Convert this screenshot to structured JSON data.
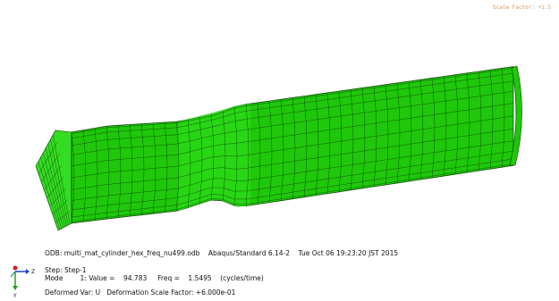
{
  "scale_factor": "Scale Factor: +1.5",
  "info": {
    "odb": "ODB: multi_mat_cylinder_hex_freq_nu499.odb    Abaqus/Standard 6.14-2    Tue Oct 06 19:23:20 JST 2015",
    "step": "Step: Step-1",
    "mode": "Mode        1: Value =    94.783     Freq =    1.5495    (cycles/time)",
    "deformed": "Deformed Var: U   Deformation Scale Factor: +6.000e-01"
  },
  "triad": {
    "z": "Z",
    "y": "Y"
  }
}
